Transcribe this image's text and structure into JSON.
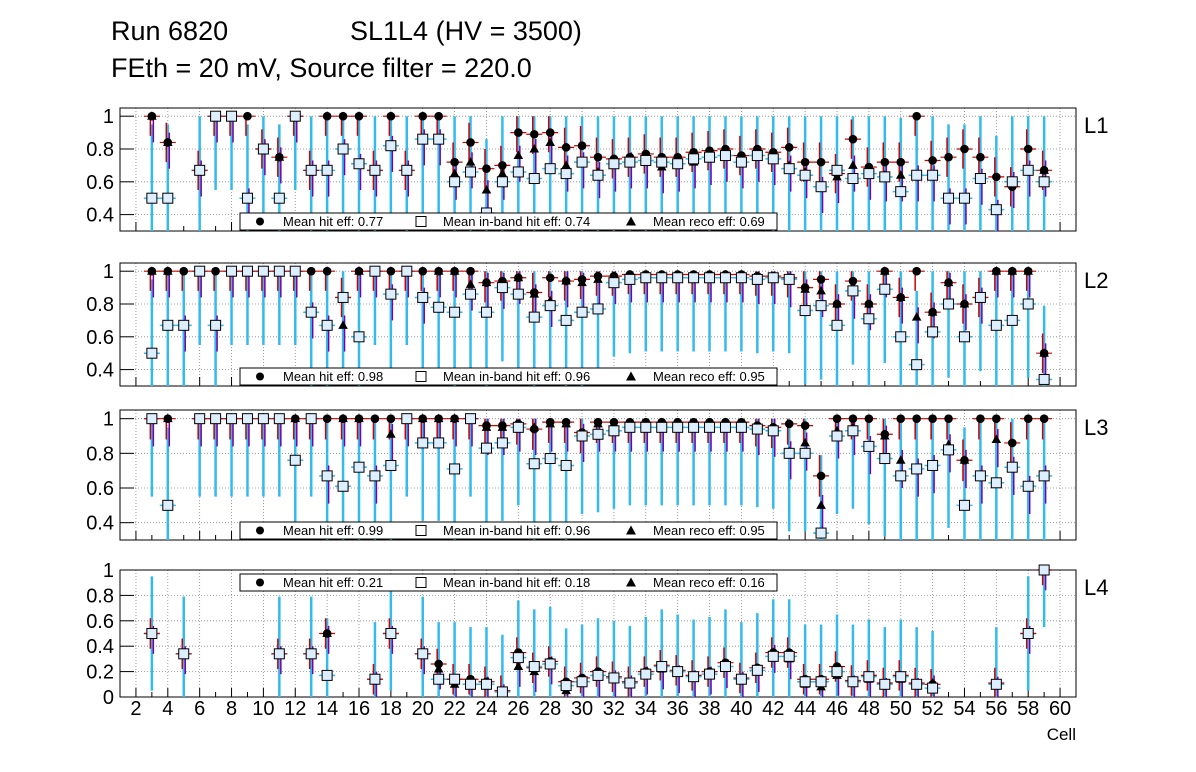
{
  "header": {
    "run": "Run 6820",
    "chamber": "SL1L4 (HV = 3500)",
    "conditions": "FEth = 20 mV, Source filter = 220.0"
  },
  "colors": {
    "hit_error": "#cc0000",
    "inband_error": "#33bbee",
    "reco_error": "#7700aa",
    "marker": "#000000",
    "inband_fill": "#ddeeff",
    "grid": "#888888"
  },
  "chart_data": {
    "type": "scatter",
    "xlabel": "Cell",
    "xlim": [
      1,
      61
    ],
    "xticks": [
      2,
      4,
      6,
      8,
      10,
      12,
      14,
      16,
      18,
      20,
      22,
      24,
      26,
      28,
      30,
      32,
      34,
      36,
      38,
      40,
      42,
      44,
      46,
      48,
      50,
      52,
      54,
      56,
      58,
      60
    ],
    "legend_labels": [
      "Mean hit  eff:",
      "Mean in-band hit eff:",
      "Mean reco eff:"
    ],
    "panels": [
      {
        "layer": "L1",
        "ylim": [
          0.3,
          1.05
        ],
        "yticks": [
          0.4,
          0.6,
          0.8,
          1
        ],
        "legend_position": "bottom",
        "means": [
          "0.77",
          "0.74",
          "0.69"
        ],
        "cells": [
          3,
          4,
          6,
          7,
          8,
          9,
          10,
          11,
          12,
          13,
          14,
          15,
          16,
          17,
          18,
          19,
          20,
          21,
          22,
          23,
          24,
          25,
          26,
          27,
          28,
          29,
          30,
          31,
          32,
          33,
          34,
          35,
          36,
          37,
          38,
          39,
          40,
          41,
          42,
          43,
          44,
          45,
          46,
          47,
          48,
          49,
          50,
          51,
          52,
          53,
          54,
          55,
          56,
          57,
          58,
          59
        ],
        "hit": [
          1.0,
          0.84,
          0.67,
          1.0,
          1.0,
          1.0,
          0.8,
          0.75,
          1.0,
          0.67,
          1.0,
          1.0,
          1.0,
          0.67,
          1.0,
          0.67,
          1.0,
          1.0,
          0.72,
          0.84,
          0.68,
          0.7,
          0.9,
          0.89,
          0.9,
          0.81,
          0.82,
          0.75,
          0.74,
          0.75,
          0.77,
          0.75,
          0.75,
          0.78,
          0.79,
          0.8,
          0.76,
          0.8,
          0.78,
          0.81,
          0.72,
          0.72,
          0.65,
          0.86,
          0.69,
          0.72,
          0.72,
          1.0,
          0.73,
          0.75,
          0.8,
          0.75,
          0.63,
          0.57,
          0.8,
          0.67
        ],
        "inband": [
          0.5,
          0.5,
          0.67,
          1.0,
          1.0,
          0.5,
          0.8,
          0.5,
          1.0,
          0.67,
          0.67,
          0.8,
          0.71,
          0.67,
          0.82,
          0.67,
          0.86,
          0.86,
          0.6,
          0.66,
          0.41,
          0.6,
          0.66,
          0.62,
          0.68,
          0.65,
          0.72,
          0.64,
          0.71,
          0.72,
          0.73,
          0.72,
          0.71,
          0.74,
          0.75,
          0.76,
          0.72,
          0.76,
          0.74,
          0.68,
          0.64,
          0.57,
          0.67,
          0.62,
          0.65,
          0.63,
          0.54,
          0.64,
          0.64,
          0.5,
          0.5,
          0.62,
          0.43,
          0.6,
          0.67,
          0.6
        ],
        "reco": [
          1.0,
          0.84,
          0.67,
          1.0,
          1.0,
          0.5,
          0.8,
          0.75,
          1.0,
          0.67,
          0.67,
          0.8,
          0.71,
          0.67,
          0.82,
          0.67,
          0.86,
          0.86,
          0.65,
          0.72,
          0.55,
          0.65,
          0.76,
          0.8,
          0.84,
          0.7,
          0.72,
          0.66,
          0.7,
          0.72,
          0.72,
          0.69,
          0.7,
          0.72,
          0.74,
          0.76,
          0.72,
          0.76,
          0.74,
          0.7,
          0.66,
          0.57,
          0.63,
          0.7,
          0.65,
          0.64,
          0.64,
          0.64,
          0.64,
          0.5,
          0.5,
          0.62,
          0.43,
          0.6,
          0.67,
          0.67
        ]
      },
      {
        "layer": "L2",
        "ylim": [
          0.3,
          1.05
        ],
        "yticks": [
          0.4,
          0.6,
          0.8,
          1
        ],
        "legend_position": "bottom",
        "means": [
          "0.98",
          "0.96",
          "0.95"
        ],
        "cells": [
          3,
          4,
          5,
          6,
          7,
          8,
          9,
          10,
          11,
          12,
          13,
          14,
          15,
          16,
          17,
          18,
          19,
          20,
          21,
          22,
          23,
          24,
          25,
          26,
          27,
          28,
          29,
          30,
          31,
          32,
          33,
          34,
          35,
          36,
          37,
          38,
          39,
          40,
          41,
          42,
          43,
          44,
          45,
          46,
          47,
          48,
          49,
          50,
          51,
          52,
          53,
          54,
          55,
          56,
          57,
          58,
          59
        ],
        "hit": [
          1.0,
          1.0,
          1.0,
          1.0,
          1.0,
          1.0,
          1.0,
          1.0,
          1.0,
          1.0,
          1.0,
          1.0,
          0.84,
          1.0,
          1.0,
          1.0,
          1.0,
          1.0,
          1.0,
          1.0,
          1.0,
          0.93,
          0.94,
          0.96,
          0.87,
          0.96,
          0.94,
          0.95,
          0.97,
          0.97,
          0.98,
          0.98,
          0.98,
          0.98,
          0.98,
          0.98,
          0.98,
          0.98,
          0.97,
          0.97,
          0.96,
          0.9,
          0.95,
          0.8,
          0.94,
          0.8,
          1.0,
          0.84,
          1.0,
          0.75,
          0.93,
          0.8,
          0.84,
          1.0,
          1.0,
          1.0,
          0.5
        ],
        "inband": [
          0.5,
          0.67,
          0.67,
          1.0,
          0.67,
          1.0,
          1.0,
          1.0,
          1.0,
          1.0,
          0.75,
          0.67,
          0.84,
          0.6,
          1.0,
          0.86,
          1.0,
          0.84,
          0.78,
          0.75,
          0.86,
          0.75,
          0.9,
          0.86,
          0.72,
          0.79,
          0.7,
          0.75,
          0.77,
          0.93,
          0.95,
          0.96,
          0.96,
          0.96,
          0.96,
          0.96,
          0.96,
          0.96,
          0.95,
          0.96,
          0.95,
          0.76,
          0.79,
          0.67,
          0.88,
          0.71,
          0.89,
          0.6,
          0.43,
          0.63,
          0.8,
          0.6,
          0.84,
          0.67,
          0.7,
          0.8,
          0.34
        ],
        "reco": [
          1.0,
          1.0,
          0.67,
          1.0,
          0.67,
          1.0,
          1.0,
          1.0,
          1.0,
          1.0,
          0.75,
          0.67,
          0.67,
          1.0,
          1.0,
          0.86,
          1.0,
          0.84,
          1.0,
          1.0,
          0.92,
          0.93,
          0.93,
          0.96,
          0.86,
          0.82,
          0.94,
          0.93,
          0.95,
          0.96,
          0.97,
          0.97,
          0.97,
          0.97,
          0.97,
          0.97,
          0.97,
          0.97,
          0.96,
          0.96,
          0.94,
          0.89,
          0.88,
          0.8,
          0.87,
          0.8,
          1.0,
          0.84,
          0.72,
          0.75,
          0.93,
          0.8,
          0.84,
          1.0,
          1.0,
          1.0,
          0.5
        ]
      },
      {
        "layer": "L3",
        "ylim": [
          0.3,
          1.05
        ],
        "yticks": [
          0.4,
          0.6,
          0.8,
          1
        ],
        "legend_position": "bottom",
        "means": [
          "0.99",
          "0.96",
          "0.95"
        ],
        "cells": [
          3,
          4,
          6,
          7,
          8,
          9,
          10,
          11,
          12,
          13,
          14,
          15,
          16,
          17,
          18,
          19,
          20,
          21,
          22,
          23,
          24,
          25,
          26,
          27,
          28,
          29,
          30,
          31,
          32,
          33,
          34,
          35,
          36,
          37,
          38,
          39,
          40,
          41,
          42,
          43,
          44,
          45,
          46,
          47,
          48,
          49,
          50,
          51,
          52,
          53,
          54,
          55,
          56,
          57,
          58,
          59
        ],
        "hit": [
          1.0,
          1.0,
          1.0,
          1.0,
          1.0,
          1.0,
          1.0,
          1.0,
          1.0,
          1.0,
          1.0,
          1.0,
          1.0,
          1.0,
          1.0,
          1.0,
          1.0,
          1.0,
          1.0,
          1.0,
          0.96,
          0.96,
          0.97,
          0.94,
          0.98,
          0.98,
          0.92,
          0.98,
          0.98,
          0.98,
          0.98,
          0.98,
          0.98,
          0.98,
          0.98,
          0.98,
          0.98,
          0.96,
          0.95,
          0.97,
          0.96,
          0.67,
          1.0,
          1.0,
          1.0,
          0.91,
          1.0,
          1.0,
          1.0,
          1.0,
          0.76,
          1.0,
          1.0,
          0.86,
          1.0,
          1.0
        ],
        "inband": [
          1.0,
          0.5,
          1.0,
          1.0,
          1.0,
          1.0,
          1.0,
          1.0,
          0.76,
          1.0,
          0.67,
          0.61,
          0.72,
          0.67,
          0.73,
          1.0,
          0.86,
          0.86,
          0.71,
          1.0,
          0.83,
          0.86,
          0.95,
          0.74,
          0.77,
          0.73,
          0.9,
          0.91,
          0.93,
          0.95,
          0.95,
          0.95,
          0.95,
          0.95,
          0.95,
          0.95,
          0.95,
          0.94,
          0.93,
          0.8,
          0.8,
          0.34,
          0.9,
          0.93,
          0.84,
          0.77,
          0.67,
          0.71,
          0.73,
          0.82,
          0.5,
          0.67,
          0.63,
          0.72,
          0.61,
          0.67
        ],
        "reco": [
          1.0,
          1.0,
          1.0,
          1.0,
          1.0,
          1.0,
          1.0,
          1.0,
          1.0,
          1.0,
          0.67,
          1.0,
          1.0,
          0.67,
          0.91,
          1.0,
          1.0,
          1.0,
          1.0,
          1.0,
          0.95,
          0.95,
          0.97,
          0.95,
          0.97,
          0.97,
          0.91,
          0.97,
          0.97,
          0.97,
          0.97,
          0.97,
          0.97,
          0.97,
          0.97,
          0.97,
          0.97,
          0.95,
          0.94,
          0.81,
          0.86,
          0.5,
          0.93,
          0.95,
          0.84,
          0.9,
          0.76,
          0.71,
          0.73,
          0.85,
          0.76,
          0.67,
          0.88,
          0.72,
          0.61,
          0.67
        ]
      },
      {
        "layer": "L4",
        "ylim": [
          0,
          1
        ],
        "yticks": [
          0,
          0.2,
          0.4,
          0.6,
          0.8,
          1
        ],
        "legend_position": "top",
        "means": [
          "0.21",
          "0.18",
          "0.16"
        ],
        "cells": [
          3,
          5,
          11,
          13,
          14,
          17,
          18,
          20,
          21,
          22,
          23,
          24,
          25,
          26,
          27,
          28,
          29,
          30,
          31,
          32,
          33,
          34,
          35,
          36,
          37,
          38,
          39,
          40,
          41,
          42,
          43,
          44,
          45,
          46,
          47,
          48,
          49,
          50,
          51,
          52,
          56,
          58,
          59
        ],
        "hit": [
          0.5,
          0.34,
          0.34,
          0.34,
          0.5,
          0.14,
          0.5,
          0.34,
          0.26,
          0.14,
          0.14,
          0.12,
          0.05,
          0.35,
          0.23,
          0.28,
          0.12,
          0.15,
          0.2,
          0.16,
          0.12,
          0.2,
          0.25,
          0.21,
          0.17,
          0.2,
          0.27,
          0.15,
          0.23,
          0.35,
          0.35,
          0.14,
          0.14,
          0.24,
          0.13,
          0.17,
          0.11,
          0.17,
          0.11,
          0.1,
          0.11,
          0.5,
          1.0
        ],
        "inband": [
          0.5,
          0.34,
          0.34,
          0.34,
          0.17,
          0.14,
          0.5,
          0.34,
          0.14,
          0.14,
          0.1,
          0.1,
          0.04,
          0.31,
          0.24,
          0.26,
          0.09,
          0.12,
          0.17,
          0.15,
          0.11,
          0.18,
          0.24,
          0.2,
          0.16,
          0.18,
          0.24,
          0.14,
          0.21,
          0.32,
          0.32,
          0.12,
          0.12,
          0.2,
          0.12,
          0.16,
          0.1,
          0.16,
          0.1,
          0.07,
          0.1,
          0.5,
          1.0
        ],
        "reco": [
          0.5,
          0.34,
          0.34,
          0.34,
          0.5,
          0.14,
          0.5,
          0.34,
          0.22,
          0.1,
          0.1,
          0.1,
          0.04,
          0.24,
          0.2,
          0.26,
          0.05,
          0.12,
          0.16,
          0.15,
          0.11,
          0.18,
          0.22,
          0.19,
          0.15,
          0.18,
          0.23,
          0.14,
          0.2,
          0.35,
          0.3,
          0.1,
          0.08,
          0.17,
          0.11,
          0.14,
          0.09,
          0.14,
          0.09,
          0.11,
          0.1,
          0.5,
          1.0
        ]
      }
    ]
  }
}
